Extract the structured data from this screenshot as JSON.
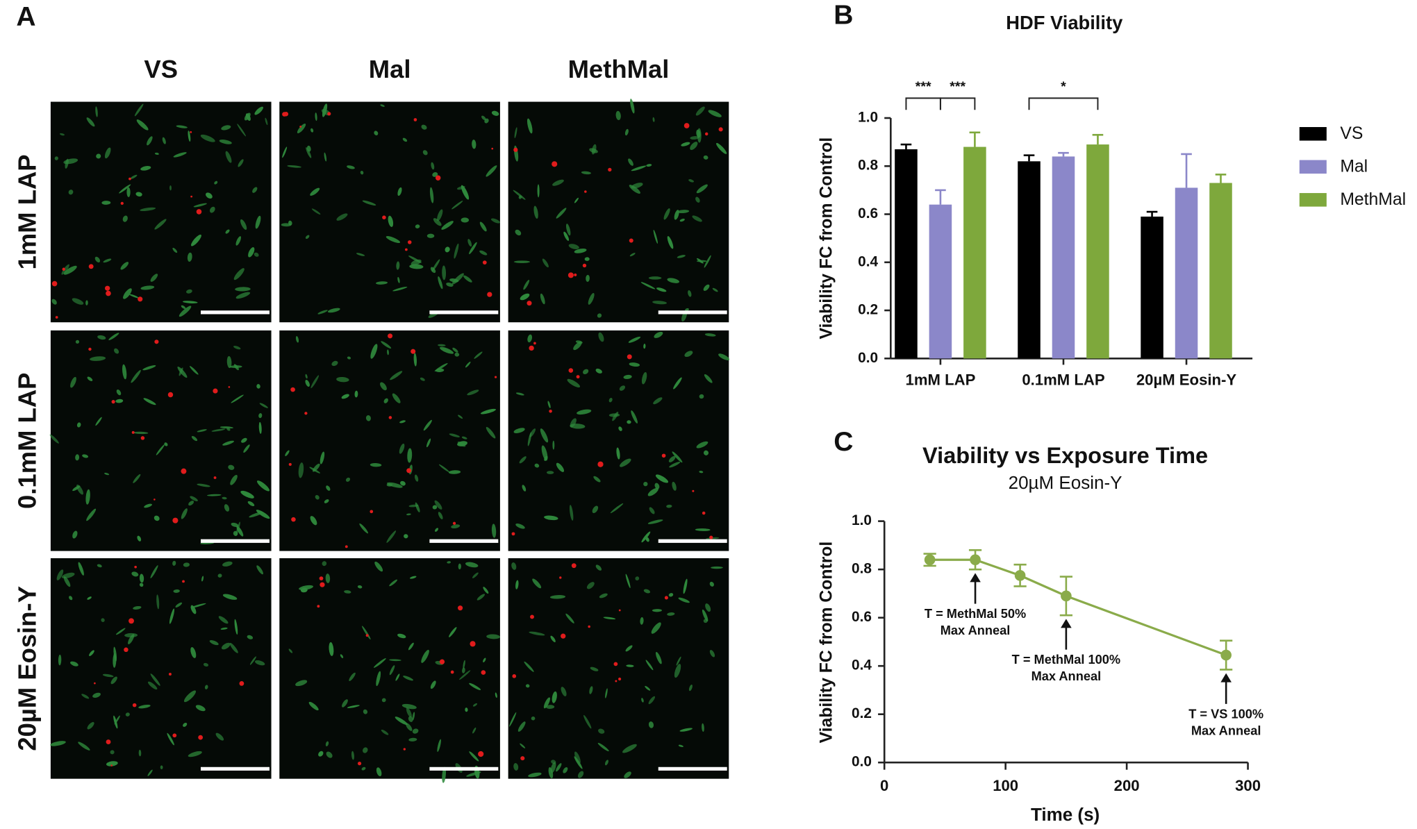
{
  "panel_a": {
    "label": "A",
    "columns": [
      "VS",
      "Mal",
      "MethMal"
    ],
    "rows": [
      "1mM LAP",
      "0.1mM LAP",
      "20µM Eosin-Y"
    ]
  },
  "chart_data": [
    {
      "type": "bar",
      "panel_label": "B",
      "title": "HDF Viability",
      "y_label": "Viability FC from Control",
      "categories": [
        "1mM LAP",
        "0.1mM LAP",
        "20µM Eosin-Y"
      ],
      "series": [
        {
          "name": "VS",
          "color": "#000000",
          "values": [
            0.87,
            0.82,
            0.59
          ],
          "errors": [
            0.02,
            0.025,
            0.02
          ]
        },
        {
          "name": "Mal",
          "color": "#8b87c9",
          "values": [
            0.64,
            0.84,
            0.71
          ],
          "errors": [
            0.06,
            0.015,
            0.14
          ]
        },
        {
          "name": "MethMal",
          "color": "#7ea83c",
          "values": [
            0.88,
            0.89,
            0.73
          ],
          "errors": [
            0.06,
            0.04,
            0.035
          ]
        }
      ],
      "ylim": [
        0,
        1
      ],
      "yticks": [
        {
          "value": 0,
          "label": "0.0"
        },
        0.2,
        0.4,
        0.6,
        0.8,
        {
          "value": 1,
          "label": "1.0"
        }
      ],
      "legend": "right",
      "significance": [
        {
          "label": "***",
          "category": "1mM LAP",
          "from": "VS",
          "to": "Mal"
        },
        {
          "label": "***",
          "category": "1mM LAP",
          "from": "Mal",
          "to": "MethMal"
        },
        {
          "label": "*",
          "category": "0.1mM LAP",
          "from": "VS",
          "to": "MethMal"
        }
      ]
    },
    {
      "type": "line",
      "panel_label": "C",
      "title": "Viability vs Exposure Time",
      "subtitle": "20µM Eosin-Y",
      "x_label": "Time (s)",
      "y_label": "Viability FC from Control",
      "color": "#8aab4a",
      "x": [
        37.5,
        75,
        112,
        150,
        282
      ],
      "values": [
        0.84,
        0.84,
        0.775,
        0.69,
        0.445
      ],
      "errors": [
        0.025,
        0.04,
        0.045,
        0.08,
        0.06
      ],
      "xlim": [
        0,
        300
      ],
      "xticks": [
        0,
        100,
        200,
        300
      ],
      "ylim": [
        0,
        1
      ],
      "yticks": [
        {
          "value": 0,
          "label": "0.0"
        },
        0.2,
        0.4,
        0.6,
        0.8,
        {
          "value": 1,
          "label": "1.0"
        }
      ],
      "annotations": [
        {
          "x": 75,
          "lines": [
            "T = MethMal 50%",
            "Max Anneal"
          ]
        },
        {
          "x": 150,
          "lines": [
            "T = MethMal 100%",
            "Max Anneal"
          ]
        },
        {
          "x": 282,
          "lines": [
            "T = VS 100%",
            "Max Anneal"
          ]
        }
      ]
    }
  ]
}
